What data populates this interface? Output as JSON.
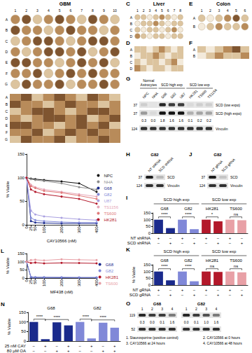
{
  "figure": {
    "tissues": [
      {
        "title": "GBM",
        "columns": [
          "1",
          "2",
          "3",
          "4",
          "5",
          "6",
          "7",
          "8",
          "9",
          "10"
        ],
        "rows": [
          "A",
          "B",
          "C",
          "D",
          "E",
          "F",
          "G"
        ],
        "scores": [
          [
            2,
            3,
            1,
            2,
            3,
            2,
            1,
            3,
            2,
            1
          ],
          [
            3,
            2,
            2,
            1,
            2,
            3,
            2,
            2,
            1,
            2
          ],
          [
            1,
            2,
            3,
            3,
            2,
            1,
            2,
            3,
            3,
            2
          ],
          [
            2,
            1,
            2,
            3,
            3,
            2,
            3,
            1,
            2,
            3
          ],
          [
            3,
            3,
            2,
            2,
            1,
            2,
            3,
            2,
            3,
            1
          ],
          [
            2,
            2,
            3,
            1,
            2,
            3,
            2,
            3,
            2,
            2
          ],
          [
            1,
            3,
            2,
            2,
            3,
            1,
            2,
            2,
            3,
            2
          ]
        ]
      },
      {
        "letter_cores": "C",
        "letter_scores": "D",
        "title": "Liver",
        "columns": [
          "1",
          "2",
          "3",
          "4",
          "5",
          "6",
          "7",
          "8"
        ],
        "rows": [
          "A",
          "B",
          "C",
          "D"
        ],
        "scores": [
          [
            1,
            1,
            0,
            1,
            2,
            1,
            0,
            1
          ],
          [
            0,
            1,
            1,
            2,
            1,
            0,
            1,
            1
          ],
          [
            1,
            0,
            1,
            1,
            0,
            1,
            2,
            0
          ],
          [
            2,
            1,
            0,
            1,
            1,
            0,
            1,
            1
          ]
        ]
      },
      {
        "letter_cores": "E",
        "letter_scores": "F",
        "title": "Colon",
        "columns": [
          "1",
          "2",
          "3",
          "4",
          "5",
          "6"
        ],
        "rows": [
          "A",
          "B"
        ],
        "scores": [
          [
            1,
            0,
            1,
            2,
            3,
            1
          ],
          [
            0,
            1,
            2,
            1,
            1,
            2
          ]
        ]
      }
    ],
    "blot_g": {
      "letter": "G",
      "groups": [
        {
          "label": "Normal Astrocytes",
          "lanes": [
            "NPC",
            "NHA"
          ]
        },
        {
          "label": "SCD high exp",
          "lanes": [
            "G68",
            "G82",
            "U87"
          ]
        },
        {
          "label": "SCD low exp",
          "lanes": [
            "HK281",
            "TS600",
            "TS1156"
          ]
        }
      ],
      "rows": [
        {
          "label": "SCD (low expo)",
          "marker": 37,
          "intensity": [
            0.1,
            0.0,
            0.9,
            0.8,
            0.8,
            0.05,
            0.1,
            0.1
          ]
        },
        {
          "label": "SCD (high expo)",
          "marker": 37,
          "intensity": [
            0.35,
            0.05,
            1.0,
            1.0,
            1.0,
            0.25,
            0.3,
            0.3
          ]
        },
        {
          "label": "Vinculin",
          "marker": 124,
          "intensity": [
            0.85,
            0.85,
            0.85,
            0.85,
            0.85,
            0.85,
            0.85,
            0.85
          ]
        }
      ],
      "quantification": [
        "0.3",
        "0.0",
        "1.8",
        "1.6",
        "1.6",
        "0.1",
        "0.2",
        "0.2"
      ]
    },
    "blot_h": {
      "letter": "H",
      "title": "G82",
      "conditions": [
        "NT shRNA",
        "SCD shRNA"
      ],
      "rows": [
        {
          "label": "SCD",
          "marker": 37,
          "intensity": [
            0.95,
            0.2
          ]
        },
        {
          "label": "Vinculin",
          "marker": 124,
          "intensity": [
            0.85,
            0.85
          ]
        }
      ]
    },
    "blot_j": {
      "letter": "J",
      "title": "G82",
      "conditions": [
        "NT gRNA",
        "SCD gRNA"
      ],
      "rows": [
        {
          "label": "SCD",
          "marker": 37,
          "intensity": [
            0.95,
            0.15
          ]
        },
        {
          "label": "Vinculin",
          "marker": 124,
          "intensity": [
            0.85,
            0.85
          ]
        }
      ]
    },
    "blot_o": {
      "letter": "O",
      "groups": [
        {
          "label": "G68",
          "lanes": [
            "1",
            "2",
            "3",
            "4"
          ],
          "quantification": [
            "0.3",
            "0.0",
            "0.1",
            "1.6"
          ]
        },
        {
          "label": "G82",
          "lanes": [
            "1",
            "2",
            "3",
            "4"
          ],
          "quantification": [
            "0.0",
            "0.1",
            "1.0",
            "1.6"
          ]
        }
      ],
      "rows": [
        {
          "marker": 119,
          "intensity": [
            0.9,
            0.8,
            0.8,
            0.5,
            0.9,
            0.8,
            0.7,
            0.5
          ]
        },
        {
          "marker": 52,
          "intensity": [
            0.85,
            0.85,
            0.85,
            0.85,
            0.85,
            0.85,
            0.85,
            0.85
          ]
        }
      ],
      "lane_key": [
        "1. Staurosporine (positive control)",
        "2. CAY10566 at 0 hours",
        "3. CAY10566 at 24 hours",
        "4. CAY10566 at 48 hours"
      ]
    }
  },
  "chart_data": [
    {
      "letter": "I",
      "type": "bar",
      "ylim": [
        0,
        150
      ],
      "yticks": [
        0,
        50,
        100,
        150
      ],
      "categories": [
        "G68",
        "G82",
        "HK281",
        "TS600"
      ],
      "colors": [
        "#1a2a8c",
        "#8088d8",
        "#b3182a",
        "#e8a0a6"
      ],
      "series": [
        {
          "values": [
            100,
            100,
            100,
            100
          ]
        },
        {
          "values": [
            38,
            30,
            88,
            96
          ]
        }
      ],
      "headers": [
        {
          "label": "SCD high exp",
          "categories": [
            "G68",
            "G82"
          ]
        },
        {
          "label": "SCD low exp",
          "categories": [
            "HK281",
            "TS600"
          ]
        }
      ],
      "conditions": [
        {
          "label": "NT shRNA",
          "signs": [
            "+",
            "−"
          ]
        },
        {
          "label": "SCD shRNA",
          "signs": [
            "−",
            "+"
          ]
        }
      ],
      "significance": [
        {
          "category": "G68",
          "bars": [
            0,
            1
          ],
          "text": "****"
        },
        {
          "category": "G82",
          "bars": [
            0,
            1
          ],
          "text": "****"
        },
        {
          "category": "HK281",
          "bars": [
            0,
            1
          ],
          "text": "*"
        },
        {
          "category": "TS600",
          "bars": [
            0,
            1
          ],
          "text": "ns"
        }
      ]
    },
    {
      "letter": "K",
      "type": "bar",
      "ylabel": "% Viable",
      "ylim": [
        0,
        150
      ],
      "yticks": [
        0,
        50,
        100,
        150
      ],
      "categories": [
        "G68",
        "G82",
        "HK281",
        "TS600"
      ],
      "colors": [
        "#1a2a8c",
        "#8088d8",
        "#b3182a",
        "#e8a0a6"
      ],
      "series": [
        {
          "values": [
            100,
            100,
            100,
            100
          ]
        },
        {
          "values": [
            35,
            28,
            97,
            94
          ]
        }
      ],
      "headers": [
        {
          "label": "SCD high exp",
          "categories": [
            "G68",
            "G82"
          ]
        },
        {
          "label": "SCD low exp",
          "categories": [
            "HK281",
            "TS600"
          ]
        }
      ],
      "conditions": [
        {
          "label": "NT gRNA",
          "signs": [
            "+",
            "−"
          ]
        },
        {
          "label": "SCD gRNA",
          "signs": [
            "−",
            "+"
          ]
        }
      ],
      "significance": [
        {
          "category": "G68",
          "bars": [
            0,
            1
          ],
          "text": "****"
        },
        {
          "category": "G82",
          "bars": [
            0,
            1
          ],
          "text": "****"
        },
        {
          "category": "HK281",
          "bars": [
            0,
            1
          ],
          "text": "ns"
        },
        {
          "category": "TS600",
          "bars": [
            0,
            1
          ],
          "text": "ns"
        }
      ]
    },
    {
      "type": "line",
      "xlabel": "CAY10566 (nM)",
      "ylabel": "% Viable",
      "marker": "circle",
      "legend": "right",
      "x": [
        0,
        25,
        50,
        100,
        200,
        300,
        400
      ],
      "xlim": [
        0,
        400
      ],
      "xticks": [
        0,
        25,
        50,
        100,
        200,
        300,
        400
      ],
      "ylim": [
        0,
        150
      ],
      "yticks": [
        0,
        50,
        100,
        150
      ],
      "series": [
        {
          "name": "NPC",
          "color": "#111111",
          "values": [
            100,
            98,
            97,
            95,
            92,
            88,
            70
          ]
        },
        {
          "name": "NHA",
          "color": "#8c8c8c",
          "values": [
            100,
            97,
            95,
            93,
            88,
            80,
            75
          ]
        },
        {
          "name": "G68",
          "color": "#1a2a8c",
          "values": [
            100,
            8,
            5,
            4,
            3,
            3,
            3
          ]
        },
        {
          "name": "G82",
          "color": "#8088d8",
          "values": [
            100,
            15,
            10,
            8,
            6,
            5,
            5
          ]
        },
        {
          "name": "U87",
          "color": "#a9a0e0",
          "values": [
            100,
            30,
            22,
            18,
            15,
            12,
            10
          ]
        },
        {
          "name": "TS1156",
          "color": "#e6a6b8",
          "values": [
            100,
            85,
            80,
            75,
            70,
            65,
            60
          ]
        },
        {
          "name": "TS600",
          "color": "#e07a7a",
          "values": [
            100,
            82,
            78,
            72,
            68,
            62,
            55
          ]
        },
        {
          "name": "HK281",
          "color": "#b3182a",
          "values": [
            100,
            75,
            70,
            65,
            60,
            55,
            45
          ]
        }
      ]
    },
    {
      "letter": "L",
      "type": "line",
      "xlabel": "MF438 (nM)",
      "ylabel": "% Viable",
      "marker": "circle",
      "legend": "right",
      "x": [
        0,
        25,
        50,
        100,
        200,
        300,
        400
      ],
      "xlim": [
        0,
        400
      ],
      "xticks": [
        0,
        25,
        50,
        100,
        200,
        300,
        400
      ],
      "ylim": [
        0,
        150
      ],
      "yticks": [
        0,
        50,
        100,
        150
      ],
      "series": [
        {
          "name": "G68",
          "color": "#1a2a8c",
          "values": [
            100,
            5,
            4,
            4,
            3,
            3,
            3
          ]
        },
        {
          "name": "G82",
          "color": "#8088d8",
          "values": [
            100,
            8,
            6,
            5,
            5,
            4,
            4
          ]
        },
        {
          "name": "HK281",
          "color": "#b3182a",
          "values": [
            100,
            92,
            95,
            90,
            93,
            92,
            90
          ]
        },
        {
          "name": "TS600",
          "color": "#e8a0a6",
          "values": [
            100,
            110,
            112,
            108,
            115,
            112,
            110
          ]
        }
      ]
    },
    {
      "letter": "N",
      "type": "bar",
      "ylabel": "% Viable",
      "ylim": [
        0,
        150
      ],
      "yticks": [
        0,
        50,
        100,
        150
      ],
      "categories": [
        "G68",
        "G82"
      ],
      "colors": [
        "#1a2a8c",
        "#8088d8"
      ],
      "series": [
        {
          "values": [
            100,
            100
          ]
        },
        {
          "values": [
            10,
            14
          ]
        },
        {
          "values": [
            98,
            96
          ]
        },
        {
          "values": [
            82,
            70
          ]
        }
      ],
      "conditions": [
        {
          "label": "25 nM CAY",
          "signs": [
            "−",
            "+",
            "−",
            "+"
          ]
        },
        {
          "label": "80 µM OA",
          "signs": [
            "−",
            "−",
            "+",
            "+"
          ]
        }
      ],
      "significance": [
        {
          "category": "G68",
          "bars": [
            0,
            1
          ],
          "text": "****"
        },
        {
          "category": "G68",
          "bars": [
            1,
            3
          ],
          "text": "****"
        },
        {
          "category": "G82",
          "bars": [
            0,
            1
          ],
          "text": "****"
        },
        {
          "category": "G82",
          "bars": [
            1,
            3
          ],
          "text": "****"
        }
      ]
    }
  ]
}
